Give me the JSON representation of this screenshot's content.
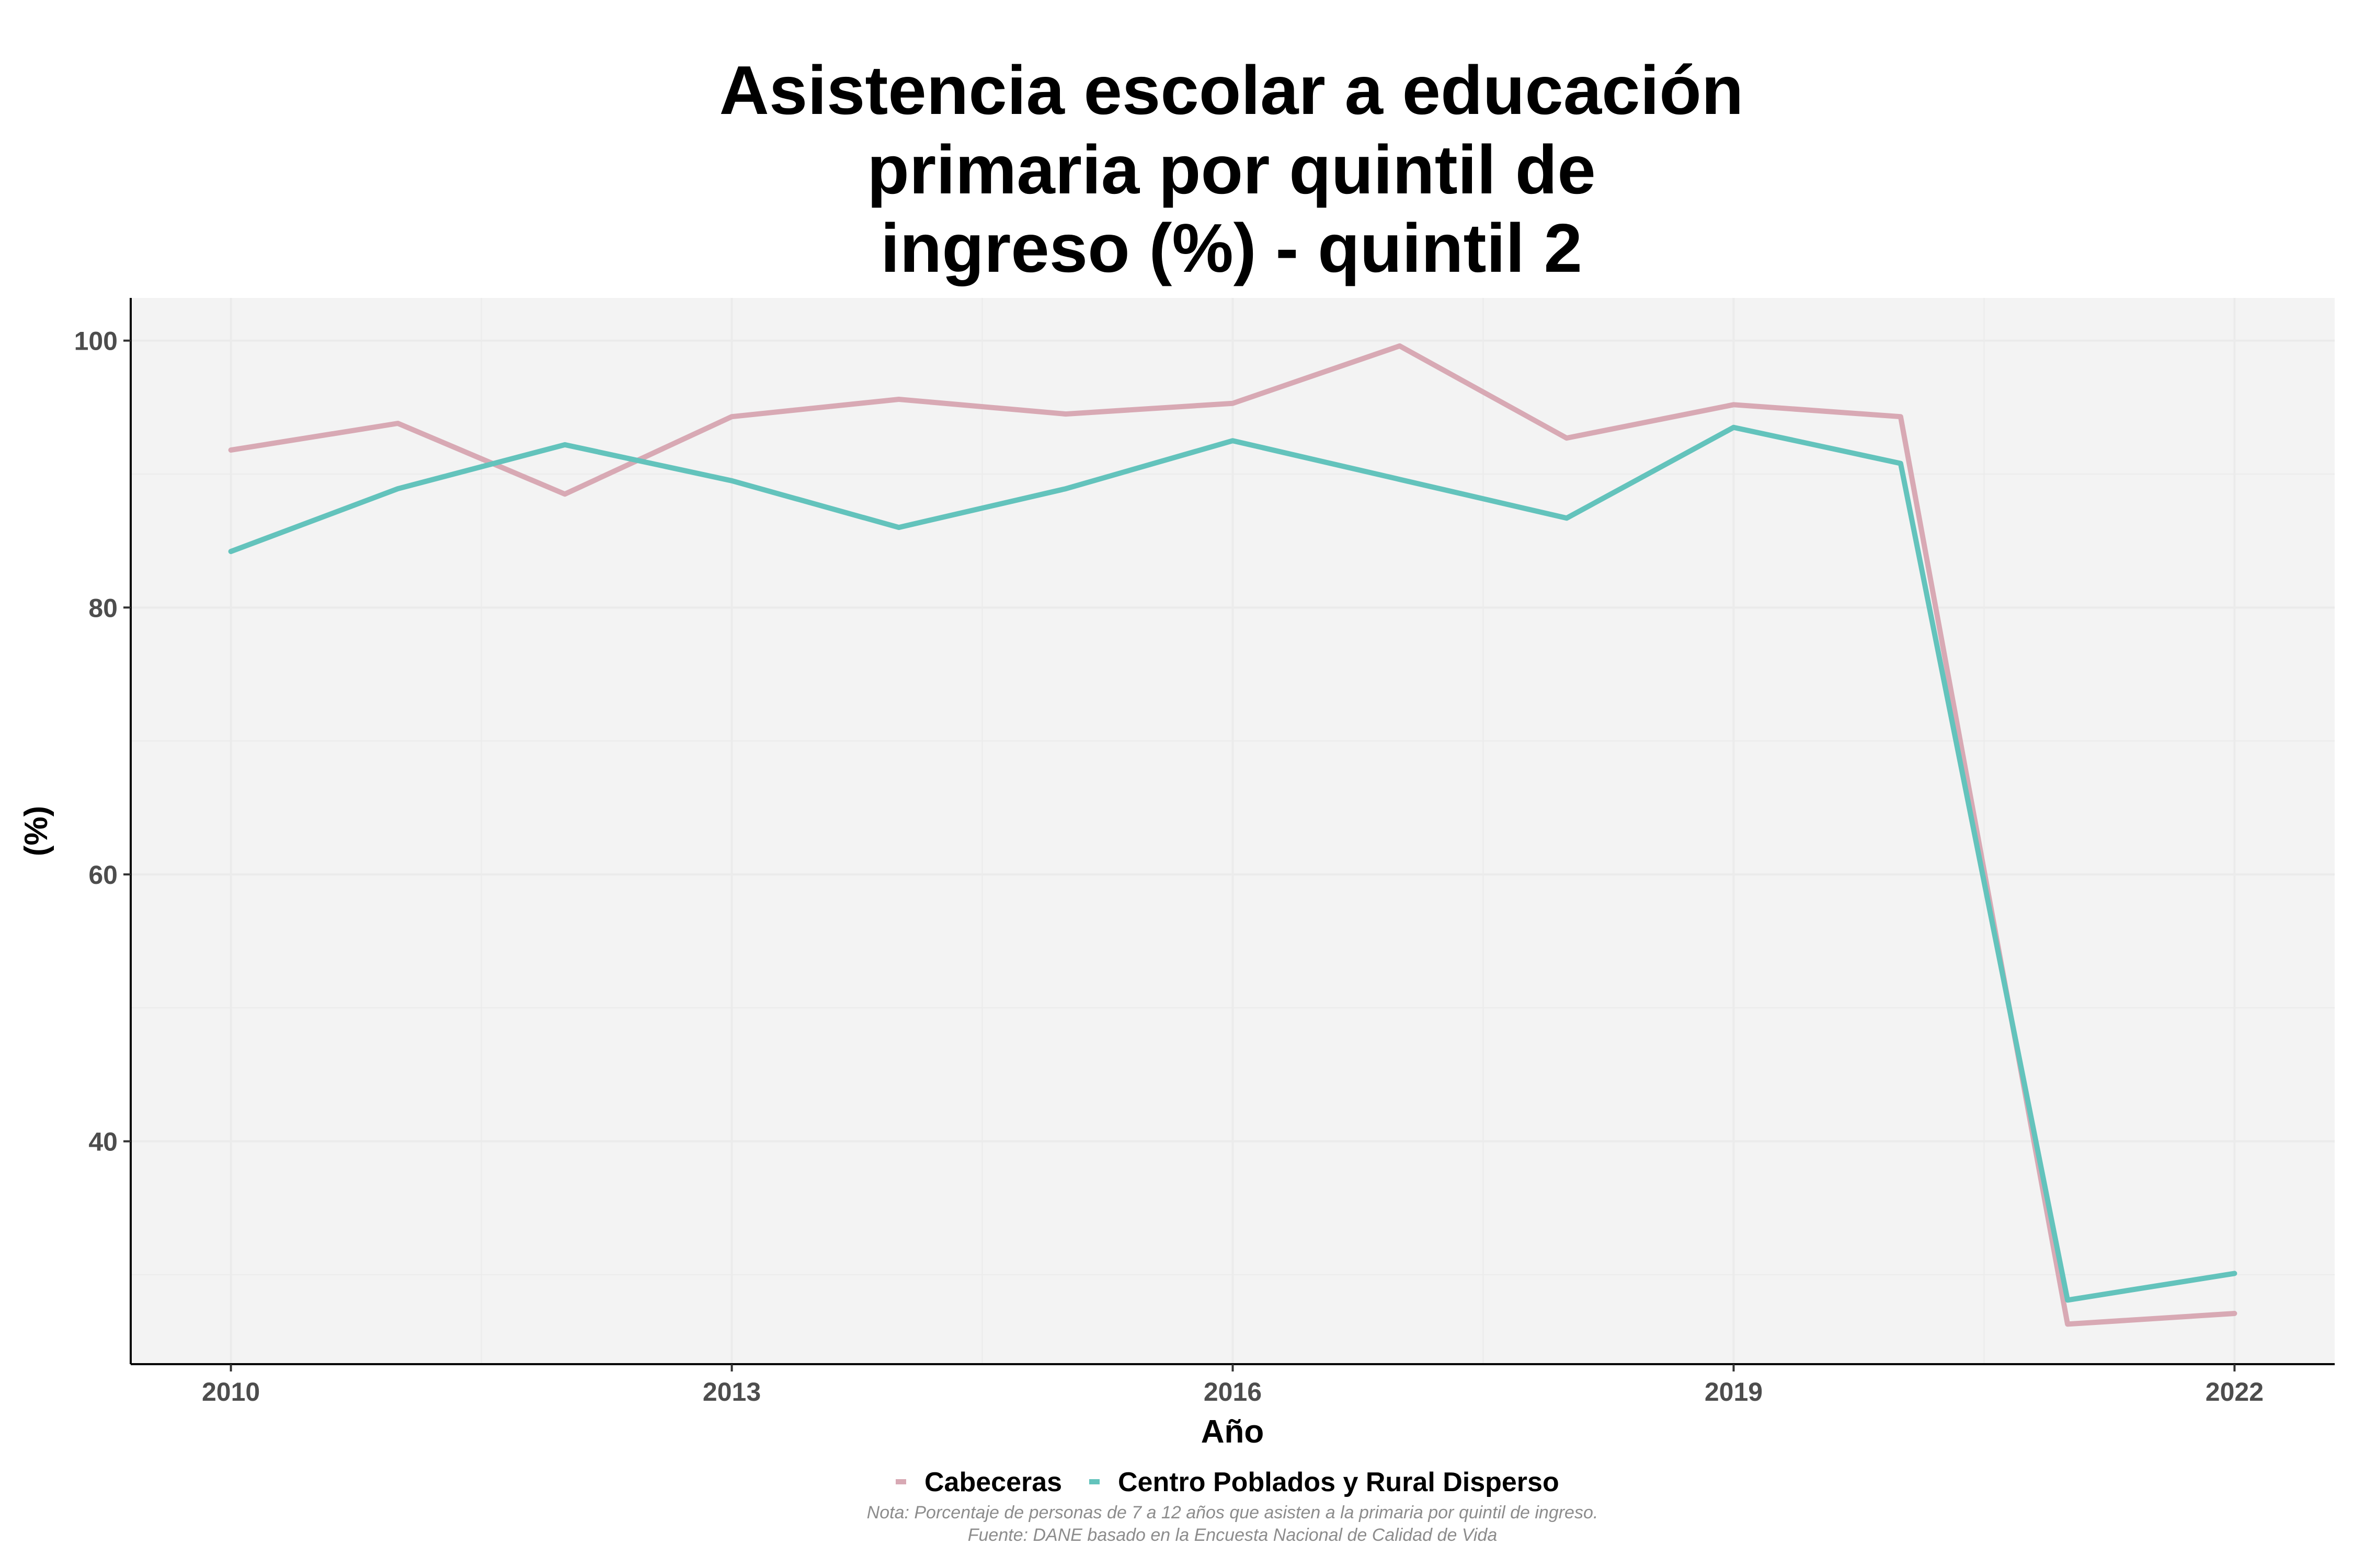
{
  "chart_data": {
    "type": "line",
    "title_lines": [
      "Asistencia escolar a educación",
      "primaria por quintil de",
      "ingreso (%) - quintil 2"
    ],
    "xlabel": "Año",
    "ylabel": "(%)",
    "x": [
      2010,
      2011,
      2012,
      2013,
      2014,
      2015,
      2016,
      2017,
      2018,
      2019,
      2020,
      2021,
      2022
    ],
    "x_ticks": [
      2010,
      2013,
      2016,
      2019,
      2022
    ],
    "y_ticks": [
      40,
      60,
      80,
      100
    ],
    "xlim": [
      2009.4,
      2022.6
    ],
    "ylim": [
      23.3,
      103.2
    ],
    "grid": true,
    "legend_position": "bottom",
    "series": [
      {
        "name": "Cabeceras",
        "color": "#d8a9b4",
        "values": [
          91.8,
          93.8,
          88.5,
          94.3,
          95.6,
          94.5,
          95.3,
          99.6,
          92.7,
          95.2,
          94.3,
          26.3,
          27.1
        ]
      },
      {
        "name": "Centro Poblados y Rural Disperso",
        "color": "#63c3bc",
        "values": [
          84.2,
          88.9,
          92.2,
          89.5,
          86.0,
          88.9,
          92.5,
          89.6,
          86.7,
          93.5,
          90.8,
          28.1,
          30.1
        ]
      }
    ],
    "caption_lines": [
      "Nota: Porcentaje de personas de 7 a 12 años que asisten a la primaria por quintil de ingreso.",
      "Fuente: DANE basado en la Encuesta Nacional de Calidad de Vida"
    ]
  },
  "colors": {
    "panel_background": "#f3f3f3",
    "grid": "#ebebeb",
    "axis": "#000000",
    "tick_label": "#4d4d4d",
    "caption": "#8c8c8c"
  }
}
